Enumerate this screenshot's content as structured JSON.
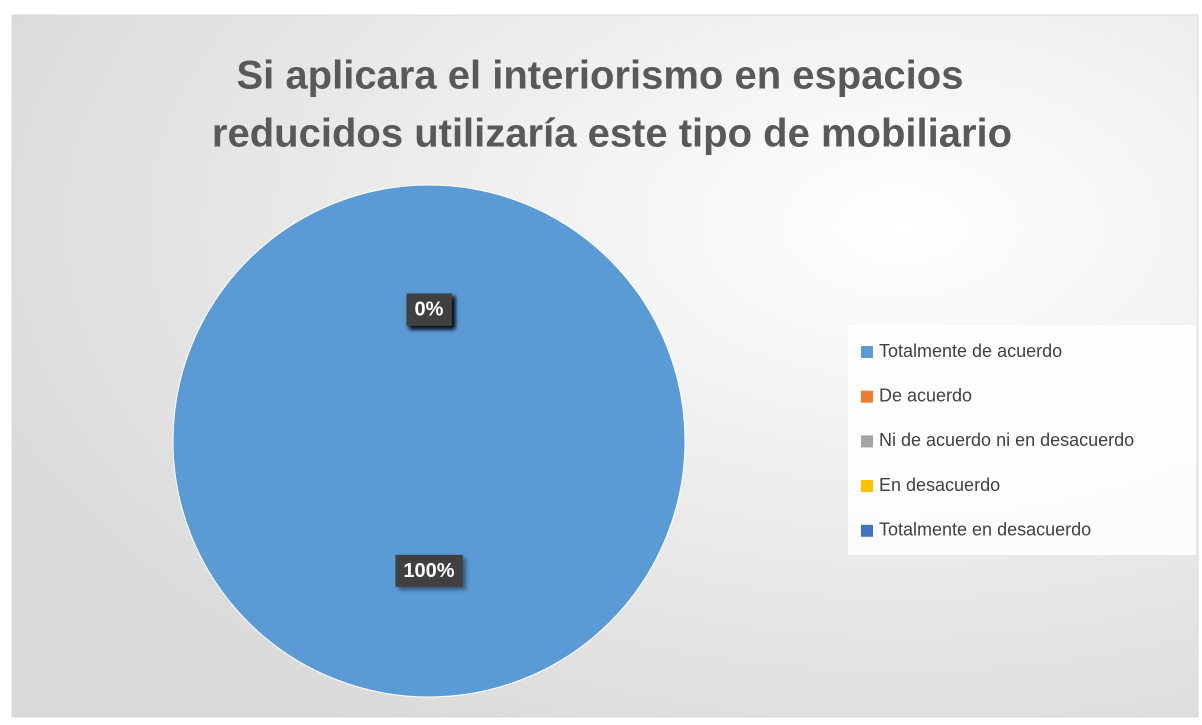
{
  "chart_data": {
    "type": "pie",
    "title": [
      "Si aplicara el interiorismo en espacios",
      "reducidos utilizaría este tipo de mobiliario"
    ],
    "categories": [
      "Totalmente de acuerdo",
      "De acuerdo",
      "Ni de acuerdo ni en desacuerdo",
      "En desacuerdo",
      "Totalmente en desacuerdo"
    ],
    "values": [
      100,
      0,
      0,
      0,
      0
    ],
    "value_labels": [
      "100%",
      "0%",
      "0%",
      "0%",
      "0%"
    ],
    "colors": [
      "#5b9bd5",
      "#ed7d31",
      "#a5a5a5",
      "#ffc000",
      "#4472c4"
    ],
    "legend": "right"
  }
}
